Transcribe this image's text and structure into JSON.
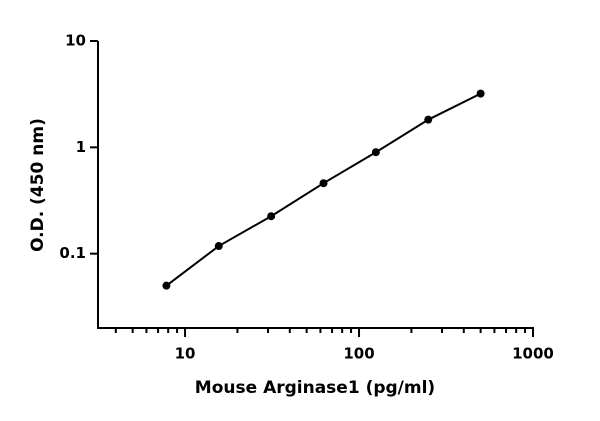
{
  "chart_data": {
    "type": "scatter",
    "x_label": "Mouse Arginase1 (pg/ml)",
    "y_label": "O.D. (450 nm)",
    "x": [
      7.8125,
      15.625,
      31.25,
      62.5,
      125,
      250,
      500
    ],
    "series": [
      {
        "color": "#000000",
        "values": [
          0.05,
          0.118,
          0.225,
          0.46,
          0.9,
          1.82,
          3.2
        ]
      }
    ],
    "connect": true,
    "xscale": "log",
    "yscale": "log",
    "xlim": [
      3.16,
      1000
    ],
    "ylim": [
      0.02,
      10
    ],
    "xticks": [
      10,
      100,
      1000
    ],
    "yticks": [
      0.1,
      1,
      10
    ],
    "x_minor_ticks": true
  }
}
